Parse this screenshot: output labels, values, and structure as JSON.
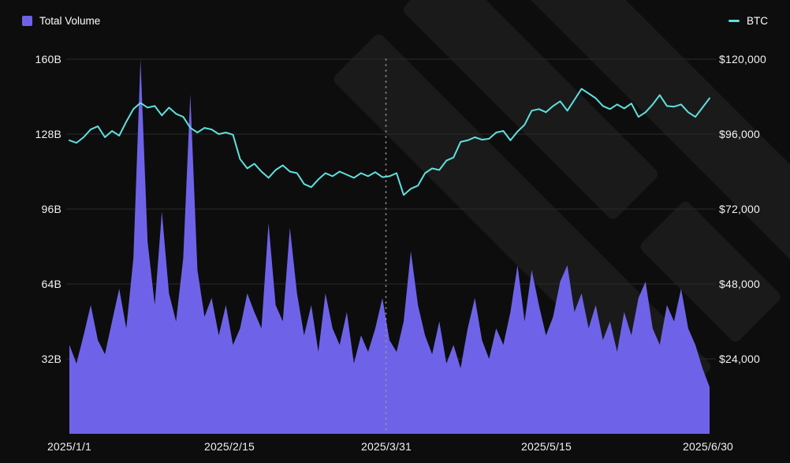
{
  "legend": {
    "total_volume": "Total Volume",
    "btc": "BTC"
  },
  "colors": {
    "background": "#0d0d0d",
    "volume_fill": "#6e63e8",
    "btc_line": "#5fe0de",
    "gridline": "#2a2a2a",
    "dotted_line": "#9a9a9a",
    "text": "#f2f2f2",
    "watermark": "#1a1a1a"
  },
  "chart_data": {
    "type": "area+line",
    "title": "",
    "legend_position": "top",
    "grid": "horizontal",
    "x_axis": {
      "tick_labels": [
        "2025/1/1",
        "2025/2/15",
        "2025/3/31",
        "2025/5/15",
        "2025/6/30"
      ],
      "tick_days": [
        0,
        45,
        89,
        134,
        180
      ],
      "total_days": 180,
      "point_interval_days": 2
    },
    "left_axis": {
      "name": "Total Volume",
      "unit": "billions USD",
      "ticks": [
        "160B",
        "128B",
        "96B",
        "64B",
        "32B"
      ],
      "tick_values": [
        160,
        128,
        96,
        64,
        32
      ],
      "min": 0,
      "max": 160
    },
    "right_axis": {
      "name": "BTC price",
      "unit": "USD",
      "ticks": [
        "$120,000",
        "$96,000",
        "$72,000",
        "$48,000",
        "$24,000"
      ],
      "tick_values": [
        120000,
        96000,
        72000,
        48000,
        24000
      ],
      "min": 0,
      "max": 120000
    },
    "series": [
      {
        "name": "Total Volume",
        "type": "area",
        "axis": "left",
        "color": "#6e63e8",
        "values": [
          38,
          30,
          42,
          55,
          40,
          34,
          48,
          62,
          45,
          75,
          160,
          82,
          55,
          95,
          60,
          48,
          75,
          145,
          70,
          50,
          58,
          42,
          55,
          38,
          45,
          60,
          52,
          45,
          90,
          55,
          48,
          88,
          60,
          42,
          55,
          35,
          60,
          45,
          38,
          52,
          30,
          42,
          35,
          45,
          58,
          40,
          35,
          48,
          78,
          55,
          42,
          34,
          48,
          30,
          38,
          28,
          45,
          58,
          40,
          32,
          45,
          38,
          52,
          72,
          48,
          70,
          55,
          42,
          50,
          65,
          72,
          52,
          60,
          45,
          55,
          40,
          48,
          35,
          52,
          42,
          58,
          65,
          45,
          38,
          55,
          48,
          62,
          45,
          38,
          28,
          20
        ]
      },
      {
        "name": "BTC",
        "type": "line",
        "axis": "right",
        "color": "#5fe0de",
        "values": [
          94000,
          93200,
          95000,
          97500,
          98500,
          95000,
          97000,
          95500,
          100000,
          104000,
          106000,
          104500,
          105000,
          102000,
          104500,
          102500,
          101500,
          98000,
          96500,
          98000,
          97500,
          96000,
          96500,
          95800,
          88000,
          85000,
          86500,
          84000,
          82000,
          84500,
          86000,
          84000,
          83500,
          80000,
          79000,
          81500,
          83500,
          82500,
          84000,
          83000,
          82000,
          83500,
          82500,
          83800,
          82200,
          82500,
          83500,
          76500,
          78500,
          79500,
          83500,
          85000,
          84500,
          87500,
          88500,
          93500,
          94000,
          95000,
          94200,
          94500,
          96500,
          97000,
          94000,
          96800,
          99000,
          103500,
          104000,
          103000,
          105000,
          106500,
          103500,
          107000,
          110500,
          109000,
          107500,
          105000,
          104000,
          105500,
          104200,
          105800,
          101500,
          103000,
          105500,
          108500,
          105000,
          104800,
          105500,
          103000,
          101500,
          104500,
          107500
        ]
      }
    ],
    "annotations": [
      {
        "type": "vline",
        "style": "dotted",
        "x_day": 89,
        "at_label": "2025/3/31"
      }
    ]
  }
}
